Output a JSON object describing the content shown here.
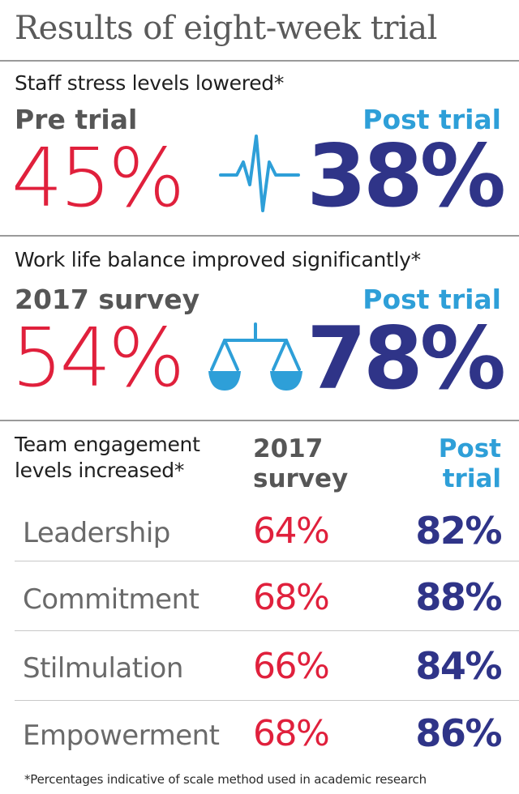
{
  "title": "Results of eight-week trial",
  "chart_data": {
    "type": "table",
    "sections": [
      {
        "heading": "Staff stress levels lowered*",
        "before_label": "Pre trial",
        "after_label": "Post trial",
        "before_value": "45%",
        "after_value": "38%",
        "icon": "heartbeat-icon"
      },
      {
        "heading": "Work life balance improved significantly*",
        "before_label": "2017 survey",
        "after_label": "Post trial",
        "before_value": "54%",
        "after_value": "78%",
        "icon": "scales-icon"
      }
    ],
    "engagement": {
      "heading_line1": "Team engagement",
      "heading_line2": "levels increased*",
      "col_before": "2017 survey",
      "col_after": "Post trial",
      "rows": [
        {
          "label": "Leadership",
          "before": "64%",
          "after": "82%"
        },
        {
          "label": "Commitment",
          "before": "68%",
          "after": "88%"
        },
        {
          "label": "Stilmulation",
          "before": "66%",
          "after": "84%"
        },
        {
          "label": "Empowerment",
          "before": "68%",
          "after": "86%"
        }
      ]
    }
  },
  "footnote": "*Percentages indicative of scale method used in academic research",
  "colors": {
    "before": "#e0203c",
    "after": "#2f3488",
    "accent": "#2e9fd8",
    "label": "#565656"
  }
}
